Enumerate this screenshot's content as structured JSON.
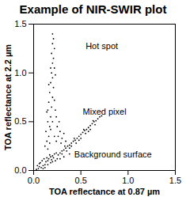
{
  "chart_data": {
    "type": "scatter",
    "title": "Example of NIR-SWIR plot",
    "x_label": "TOA reflectance at 0.87 µm",
    "y_label": "TOA reflectance at 2.2 µm",
    "color": "#000000",
    "marker": "dot",
    "xlim": [
      0,
      1.5
    ],
    "ylim": [
      0,
      1.5
    ],
    "xticks": [
      {
        "value": 0,
        "label": "0.0"
      },
      {
        "value": 0.5,
        "label": "0.5"
      },
      {
        "value": 1,
        "label": "1.0"
      },
      {
        "value": 1.5,
        "label": "1.5"
      }
    ],
    "yticks": [
      {
        "value": 0,
        "label": "0.0"
      },
      {
        "value": 0.5,
        "label": "0.5"
      },
      {
        "value": 1,
        "label": "1.0"
      },
      {
        "value": 1.5,
        "label": "1.5"
      }
    ],
    "annotations": [
      {
        "text": "Hot spot",
        "x": 0.55,
        "y": 1.27
      },
      {
        "text": "Mixed pixel",
        "x": 0.52,
        "y": 0.6
      },
      {
        "text": "Background surface",
        "x": 0.43,
        "y": 0.16
      }
    ],
    "x": [
      0.03,
      0.05,
      0.06,
      0.08,
      0.1,
      0.12,
      0.07,
      0.09,
      0.11,
      0.13,
      0.15,
      0.14,
      0.16,
      0.18,
      0.2,
      0.17,
      0.19,
      0.21,
      0.22,
      0.04,
      0.06,
      0.1,
      0.12,
      0.15,
      0.18,
      0.2,
      0.23,
      0.25,
      0.24,
      0.26,
      0.28,
      0.3,
      0.32,
      0.34,
      0.36,
      0.38,
      0.4,
      0.42,
      0.44,
      0.46,
      0.48,
      0.5,
      0.52,
      0.54,
      0.56,
      0.58,
      0.6,
      0.62,
      0.64,
      0.66,
      0.68,
      0.7,
      0.72,
      0.3,
      0.35,
      0.4,
      0.45,
      0.5,
      0.55,
      0.6,
      0.65,
      0.33,
      0.43,
      0.53,
      0.63,
      0.38,
      0.48,
      0.58,
      0.28,
      0.32,
      0.38,
      0.14,
      0.16,
      0.13,
      0.17,
      0.15,
      0.18,
      0.14,
      0.19,
      0.16,
      0.2,
      0.17,
      0.21,
      0.18,
      0.2,
      0.19,
      0.22,
      0.2,
      0.21,
      0.19,
      0.22,
      0.2,
      0.21,
      0.2,
      0.18,
      0.23,
      0.16,
      0.22,
      0.15,
      0.18,
      0.2,
      0.12,
      0.15,
      0.17,
      0.24,
      0.26,
      0.28,
      0.25,
      0.3,
      0.32,
      0.27,
      0.24,
      0.29,
      0.34,
      0.22,
      0.23
    ],
    "values": [
      0.01,
      0.02,
      0.04,
      0.03,
      0.05,
      0.06,
      0.08,
      0.1,
      0.12,
      0.09,
      0.1,
      0.13,
      0.12,
      0.14,
      0.15,
      0.16,
      0.11,
      0.13,
      0.17,
      0.05,
      0.07,
      0.02,
      0.03,
      0.06,
      0.08,
      0.09,
      0.1,
      0.12,
      0.18,
      0.16,
      0.18,
      0.2,
      0.21,
      0.23,
      0.25,
      0.26,
      0.28,
      0.3,
      0.31,
      0.33,
      0.35,
      0.37,
      0.39,
      0.41,
      0.42,
      0.44,
      0.46,
      0.48,
      0.5,
      0.51,
      0.53,
      0.55,
      0.56,
      0.17,
      0.2,
      0.25,
      0.28,
      0.33,
      0.38,
      0.42,
      0.47,
      0.25,
      0.33,
      0.42,
      0.51,
      0.23,
      0.31,
      0.4,
      0.12,
      0.14,
      0.17,
      0.3,
      0.35,
      0.4,
      0.45,
      0.5,
      0.55,
      0.6,
      0.65,
      0.7,
      0.75,
      0.8,
      0.85,
      0.9,
      0.95,
      1.0,
      1.05,
      1.1,
      1.15,
      1.2,
      1.25,
      1.3,
      1.35,
      1.4,
      1.05,
      0.98,
      0.88,
      0.72,
      0.62,
      0.42,
      0.5,
      0.25,
      0.22,
      0.28,
      0.3,
      0.35,
      0.4,
      0.45,
      0.33,
      0.38,
      0.5,
      0.55,
      0.28,
      0.3,
      0.35,
      0.62
    ]
  }
}
